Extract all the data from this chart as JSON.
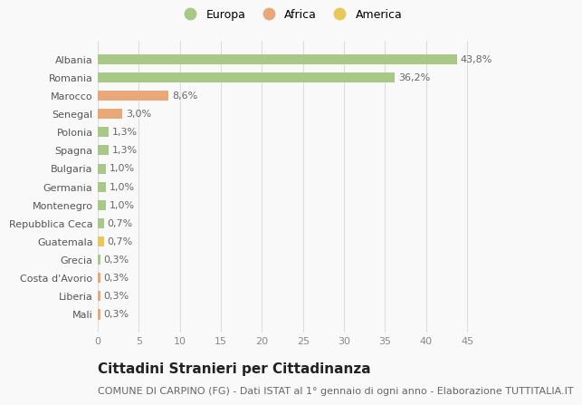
{
  "categories": [
    "Albania",
    "Romania",
    "Marocco",
    "Senegal",
    "Polonia",
    "Spagna",
    "Bulgaria",
    "Germania",
    "Montenegro",
    "Repubblica Ceca",
    "Guatemala",
    "Grecia",
    "Costa d'Avorio",
    "Liberia",
    "Mali"
  ],
  "values": [
    43.8,
    36.2,
    8.6,
    3.0,
    1.3,
    1.3,
    1.0,
    1.0,
    1.0,
    0.7,
    0.7,
    0.3,
    0.3,
    0.3,
    0.3
  ],
  "labels": [
    "43,8%",
    "36,2%",
    "8,6%",
    "3,0%",
    "1,3%",
    "1,3%",
    "1,0%",
    "1,0%",
    "1,0%",
    "0,7%",
    "0,7%",
    "0,3%",
    "0,3%",
    "0,3%",
    "0,3%"
  ],
  "continent": [
    "Europa",
    "Europa",
    "Africa",
    "Africa",
    "Europa",
    "Europa",
    "Europa",
    "Europa",
    "Europa",
    "Europa",
    "America",
    "Europa",
    "Africa",
    "Africa",
    "Africa"
  ],
  "colors": {
    "Europa": "#a8c888",
    "Africa": "#e8a878",
    "America": "#e8c858"
  },
  "legend_order": [
    "Europa",
    "Africa",
    "America"
  ],
  "legend_colors": [
    "#a8c888",
    "#e8a878",
    "#e8c858"
  ],
  "xlim": [
    0,
    47
  ],
  "xticks": [
    0,
    5,
    10,
    15,
    20,
    25,
    30,
    35,
    40,
    45
  ],
  "title": "Cittadini Stranieri per Cittadinanza",
  "subtitle": "COMUNE DI CARPINO (FG) - Dati ISTAT al 1° gennaio di ogni anno - Elaborazione TUTTITALIA.IT",
  "bg_color": "#f9f9f9",
  "grid_color": "#dddddd",
  "bar_height": 0.55,
  "title_fontsize": 11,
  "subtitle_fontsize": 8,
  "label_fontsize": 8,
  "tick_fontsize": 8,
  "legend_fontsize": 9
}
